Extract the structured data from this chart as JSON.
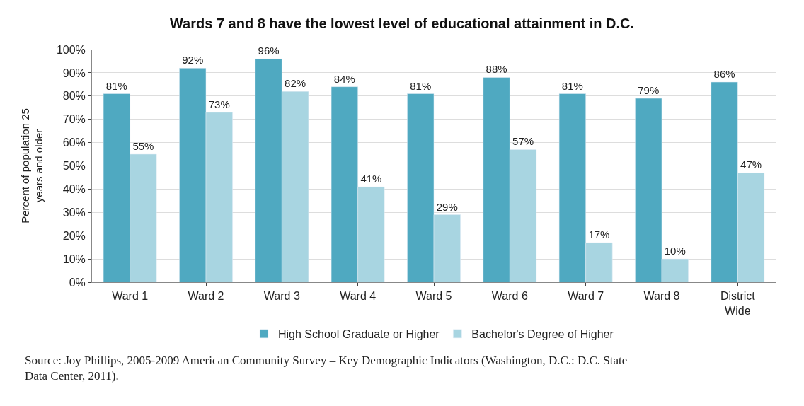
{
  "chart_data": {
    "type": "bar",
    "title": "Wards 7 and 8 have the lowest level of educational attainment in D.C.",
    "ylabel": "Percent of population 25 years and older",
    "categories": [
      "Ward 1",
      "Ward 2",
      "Ward 3",
      "Ward 4",
      "Ward 5",
      "Ward 6",
      "Ward 7",
      "Ward 8",
      "District Wide"
    ],
    "series": [
      {
        "name": "High School Graduate or Higher",
        "color": "#4fa9c1",
        "values": [
          81,
          92,
          96,
          84,
          81,
          88,
          81,
          79,
          86
        ],
        "value_labels": [
          "81%",
          "92%",
          "96%",
          "84%",
          "81%",
          "88%",
          "81%",
          "79%",
          "86%"
        ]
      },
      {
        "name": "Bachelor's Degree of Higher",
        "color": "#a8d5e1",
        "values": [
          55,
          73,
          82,
          41,
          29,
          57,
          17,
          10,
          47
        ],
        "value_labels": [
          "55%",
          "73%",
          "82%",
          "41%",
          "29%",
          "57%",
          "17%",
          "10%",
          "47%"
        ]
      }
    ],
    "ylim": [
      0,
      100
    ],
    "yticks": [
      {
        "value": 0,
        "label": "0%"
      },
      {
        "value": 10,
        "label": "10%"
      },
      {
        "value": 20,
        "label": "20%"
      },
      {
        "value": 30,
        "label": "30%"
      },
      {
        "value": 40,
        "label": "40%"
      },
      {
        "value": 50,
        "label": "50%"
      },
      {
        "value": 60,
        "label": "60%"
      },
      {
        "value": 70,
        "label": "70%"
      },
      {
        "value": 80,
        "label": "80%"
      },
      {
        "value": 90,
        "label": "90%"
      },
      {
        "value": 100,
        "label": "100%"
      }
    ],
    "grid": "y",
    "legend": "bottom",
    "annotations": [
      "Source: Joy Phillips, 2005-2009 American Community Survey – Key Demographic Indicators (Washington, D.C.: D.C. State Data Center, 2011)."
    ]
  }
}
